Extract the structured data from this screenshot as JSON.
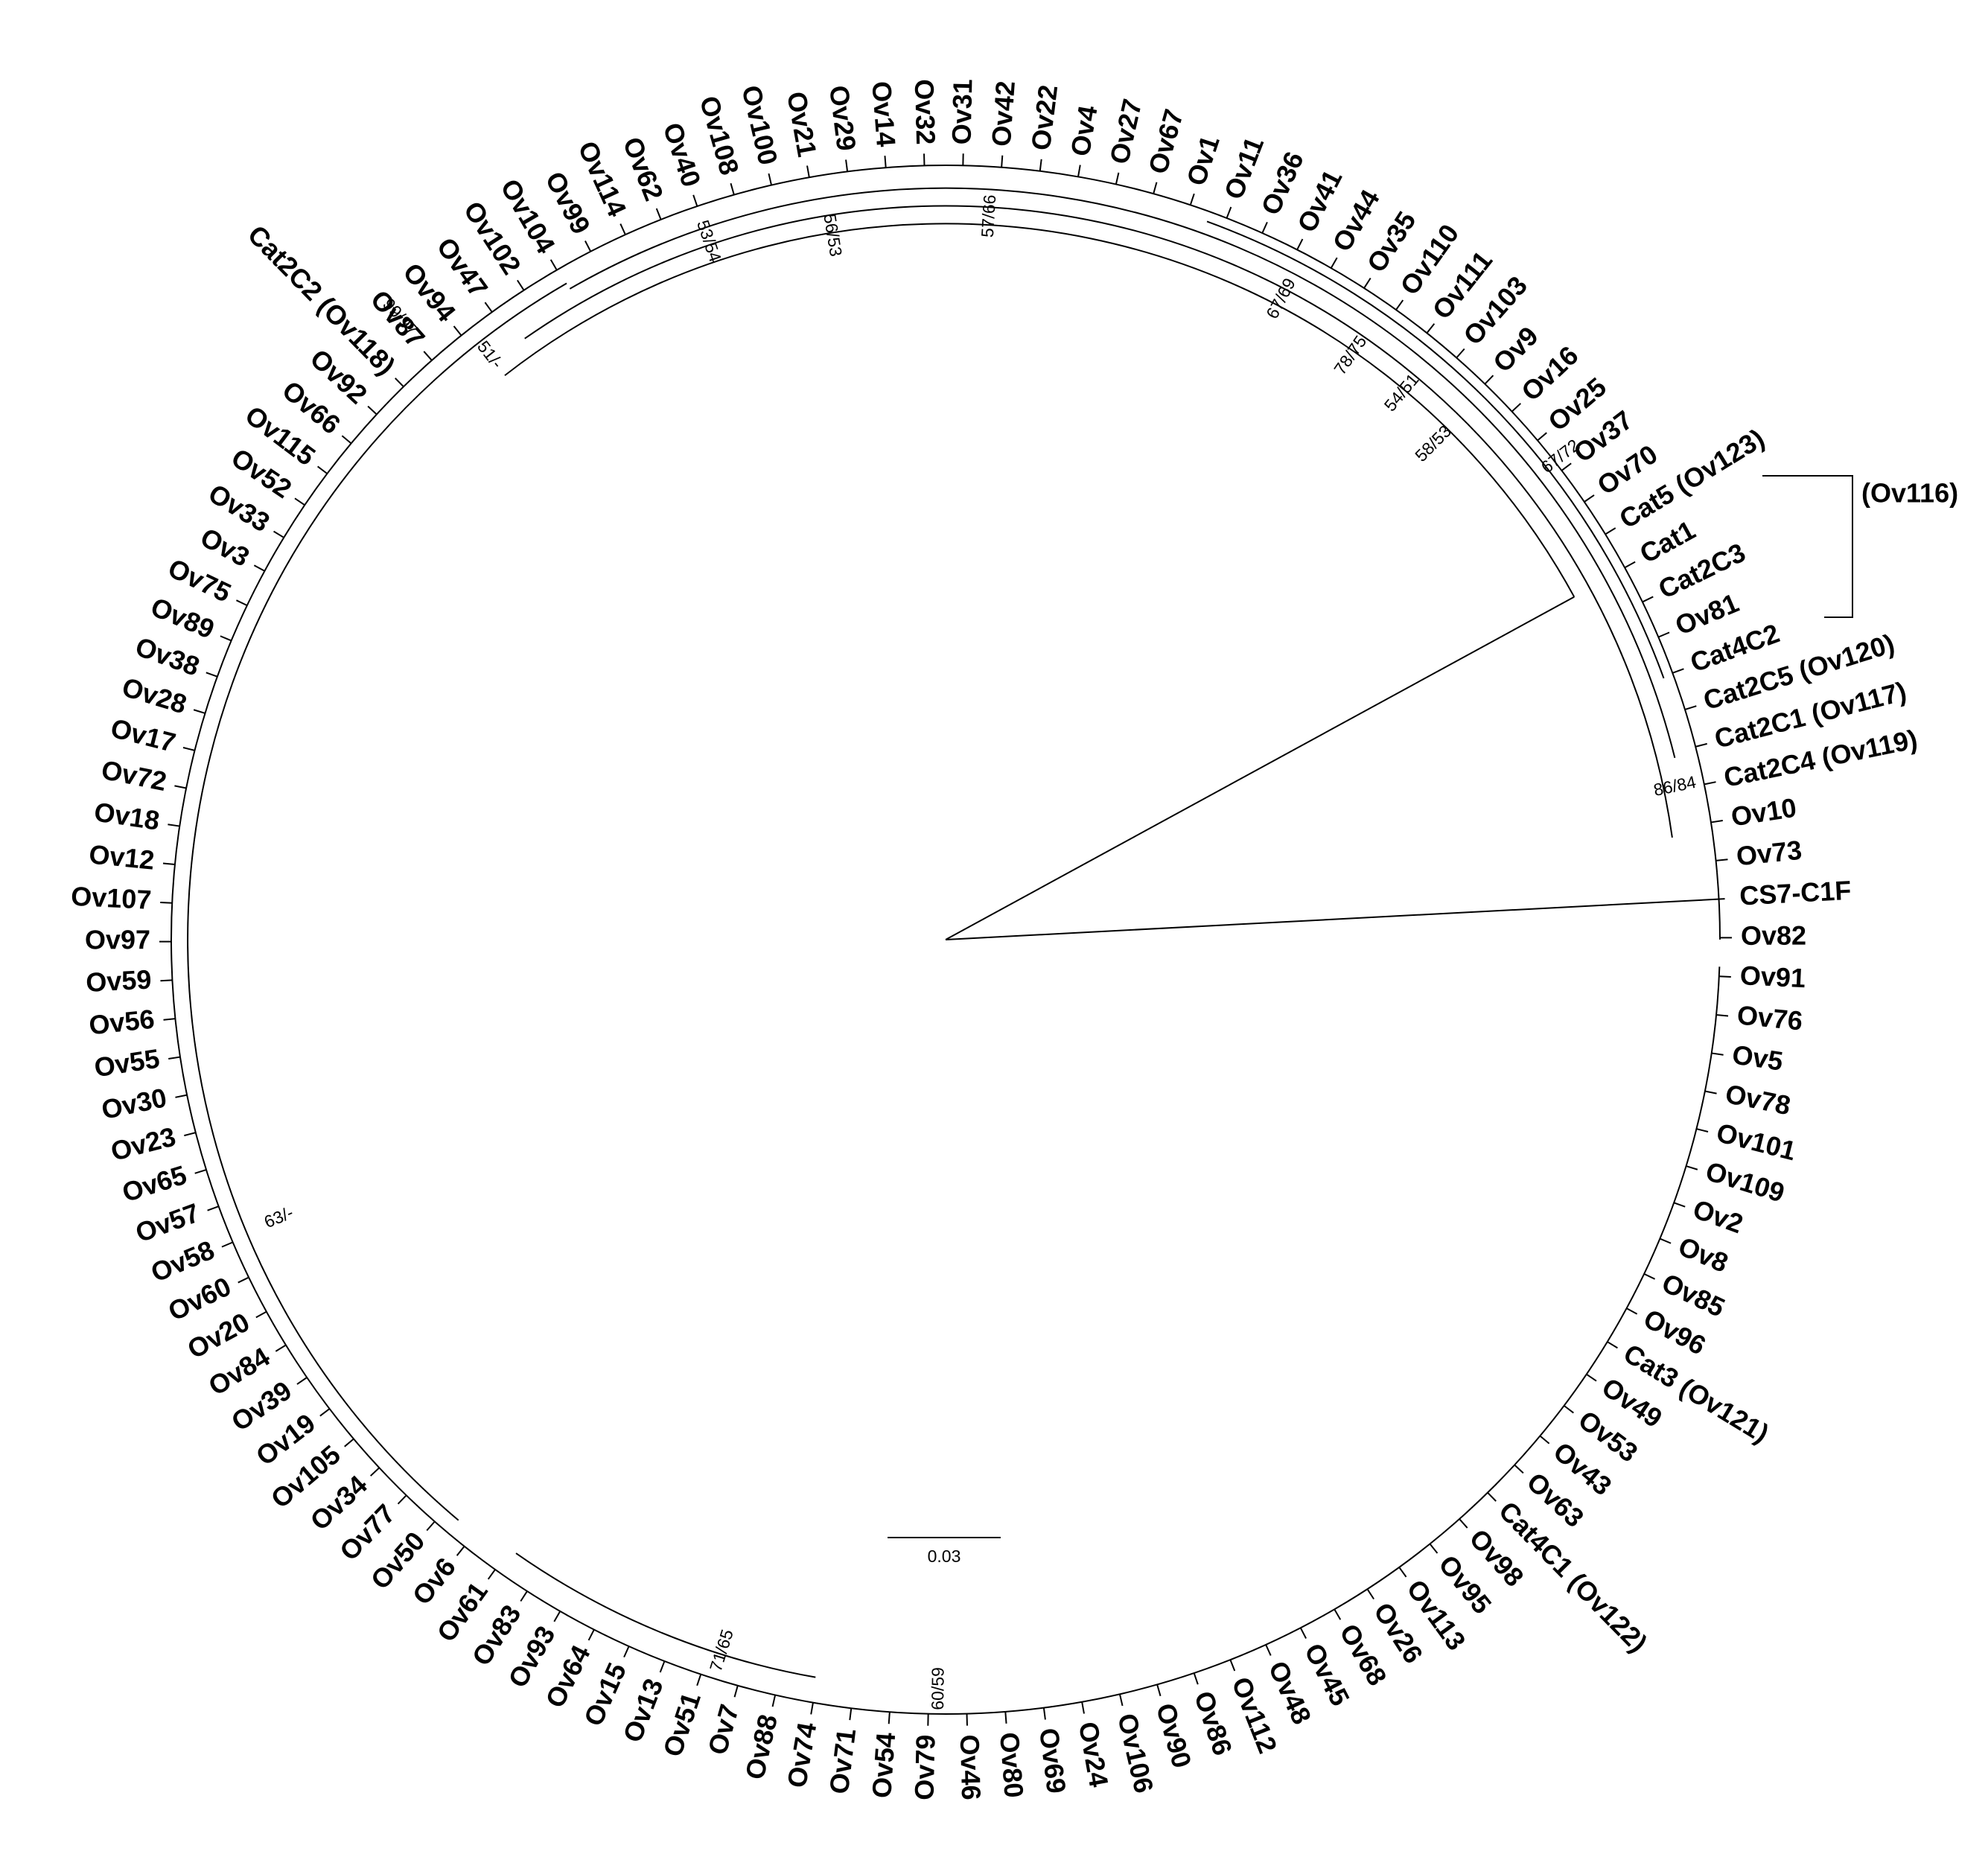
{
  "leaves": [
    "CS7-C1F",
    "Ov82",
    "Ov91",
    "Ov76",
    "Ov5",
    "Ov78",
    "Ov101",
    "Ov109",
    "Ov2",
    "Ov8",
    "Ov85",
    "Ov96",
    "Cat3 (Ov121)",
    "Ov49",
    "Ov53",
    "Ov43",
    "Ov63",
    "Cat4C1 (Ov122)",
    "Ov98",
    "Ov95",
    "Ov113",
    "Ov26",
    "Ov68",
    "Ov45",
    "Ov48",
    "Ov112",
    "Ov86",
    "Ov90",
    "Ov106",
    "Ov24",
    "Ov69",
    "Ov80",
    "Ov46",
    "Ov79",
    "Ov54",
    "Ov71",
    "Ov74",
    "Ov88",
    "Ov7",
    "Ov51",
    "Ov13",
    "Ov15",
    "Ov64",
    "Ov93",
    "Ov83",
    "Ov61",
    "Ov6",
    "Ov50",
    "Ov77",
    "Ov34",
    "Ov105",
    "Ov19",
    "Ov39",
    "Ov84",
    "Ov20",
    "Ov60",
    "Ov58",
    "Ov57",
    "Ov65",
    "Ov23",
    "Ov30",
    "Ov55",
    "Ov56",
    "Ov59",
    "Ov97",
    "Ov107",
    "Ov12",
    "Ov18",
    "Ov72",
    "Ov17",
    "Ov28",
    "Ov38",
    "Ov89",
    "Ov75",
    "Ov3",
    "Ov33",
    "Ov52",
    "Ov115",
    "Ov66",
    "Ov92",
    "Cat2C2 (Ov118)",
    "Ov87",
    "Ov94",
    "Ov47",
    "Ov102",
    "Ov104",
    "Ov99",
    "Ov114",
    "Ov62",
    "Ov40",
    "Ov108",
    "Ov100",
    "Ov21",
    "Ov29",
    "Ov14",
    "Ov32",
    "Ov31",
    "Ov42",
    "Ov22",
    "Ov4",
    "Ov27",
    "Ov67",
    "Ov1",
    "Ov11",
    "Ov36",
    "Ov41",
    "Ov44",
    "Ov35",
    "Ov110",
    "Ov111",
    "Ov103",
    "Ov9",
    "Ov16",
    "Ov25",
    "Ov37",
    "Ov70",
    "Cat5 (Ov123)",
    "Cat1",
    "Cat2C3",
    "Ov81",
    "Cat4C2",
    "Cat2C5 (Ov120)",
    "Cat2C1 (Ov117)",
    "Cat2C4 (Ov119)",
    "Ov10",
    "Ov73"
  ],
  "bootstrap": [
    "53/54",
    "56/53",
    "57/66",
    "67/69",
    "78/75",
    "54/51",
    "58/53",
    "67/72",
    "86/84",
    "99/97",
    "51/-",
    "63/-",
    "71/65",
    "60/59"
  ],
  "group_label": "(Ov116)",
  "scale_bar": "0.03"
}
